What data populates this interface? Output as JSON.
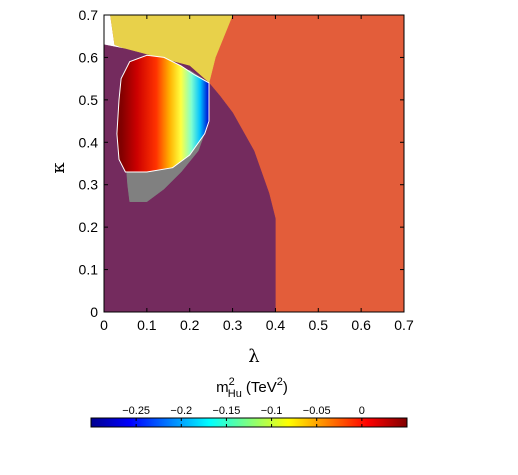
{
  "chart_data": {
    "type": "heatmap",
    "title": "",
    "xlabel": "λ",
    "ylabel": "κ",
    "xlim": [
      0,
      0.7
    ],
    "ylim": [
      0,
      0.7
    ],
    "x_ticks": [
      "0",
      "0.1",
      "0.2",
      "0.3",
      "0.4",
      "0.5",
      "0.6",
      "0.7"
    ],
    "y_ticks": [
      "0",
      "0.1",
      "0.2",
      "0.3",
      "0.4",
      "0.5",
      "0.6",
      "0.7"
    ],
    "grid": false,
    "regions": [
      {
        "color": "#e35d3a",
        "polygon": [
          [
            0,
            0.7
          ],
          [
            0.7,
            0.7
          ],
          [
            0.7,
            0
          ],
          [
            0.4,
            0
          ],
          [
            0.4,
            0.22
          ],
          [
            0.385,
            0.28
          ],
          [
            0.35,
            0.38
          ],
          [
            0.3,
            0.47
          ],
          [
            0.27,
            0.51
          ],
          [
            0.245,
            0.54
          ],
          [
            0.215,
            0.57
          ],
          [
            0.025,
            0.63
          ],
          [
            0.015,
            0.7
          ]
        ]
      },
      {
        "color": "#e8d14a",
        "polygon": [
          [
            0.015,
            0.7
          ],
          [
            0.3,
            0.7
          ],
          [
            0.28,
            0.65
          ],
          [
            0.26,
            0.6
          ],
          [
            0.245,
            0.54
          ],
          [
            0.2,
            0.58
          ],
          [
            0.05,
            0.62
          ],
          [
            0.025,
            0.63
          ]
        ]
      },
      {
        "color": "#742b5e",
        "polygon": [
          [
            0,
            0.63
          ],
          [
            0.05,
            0.62
          ],
          [
            0.2,
            0.58
          ],
          [
            0.245,
            0.54
          ],
          [
            0.27,
            0.51
          ],
          [
            0.3,
            0.47
          ],
          [
            0.35,
            0.38
          ],
          [
            0.385,
            0.28
          ],
          [
            0.4,
            0.22
          ],
          [
            0.4,
            0
          ],
          [
            0,
            0
          ]
        ]
      },
      {
        "color": "#808080",
        "polygon": [
          [
            0.04,
            0.48
          ],
          [
            0.05,
            0.37
          ],
          [
            0.055,
            0.3
          ],
          [
            0.06,
            0.26
          ],
          [
            0.1,
            0.26
          ],
          [
            0.14,
            0.29
          ],
          [
            0.18,
            0.33
          ],
          [
            0.22,
            0.38
          ],
          [
            0.245,
            0.45
          ],
          [
            0.245,
            0.54
          ],
          [
            0.2,
            0.57
          ],
          [
            0.12,
            0.56
          ]
        ]
      }
    ],
    "heat_region": {
      "x_range": [
        0.04,
        0.245
      ],
      "polygon": [
        [
          0.035,
          0.5
        ],
        [
          0.04,
          0.55
        ],
        [
          0.06,
          0.59
        ],
        [
          0.1,
          0.605
        ],
        [
          0.14,
          0.6
        ],
        [
          0.18,
          0.58
        ],
        [
          0.21,
          0.56
        ],
        [
          0.245,
          0.54
        ],
        [
          0.245,
          0.45
        ],
        [
          0.235,
          0.42
        ],
        [
          0.2,
          0.37
        ],
        [
          0.16,
          0.34
        ],
        [
          0.1,
          0.33
        ],
        [
          0.05,
          0.33
        ],
        [
          0.035,
          0.36
        ],
        [
          0.03,
          0.42
        ]
      ],
      "value_range": [
        -0.3,
        0.05
      ]
    },
    "colorbar": {
      "title": "m",
      "title_superscript": "2",
      "title_subscript": "Hu",
      "title_units": "(TeV",
      "title_units_superscript": "2",
      "title_units_close": ")",
      "range": [
        -0.3,
        0.05
      ],
      "tick_values": [
        -0.25,
        -0.2,
        -0.15,
        -0.1,
        -0.05,
        0
      ],
      "tick_labels": [
        "−0.25",
        "−0.2",
        "−0.15",
        "−0.1",
        "−0.05",
        "0"
      ],
      "orientation": "horizontal",
      "placement": "bottom"
    }
  }
}
